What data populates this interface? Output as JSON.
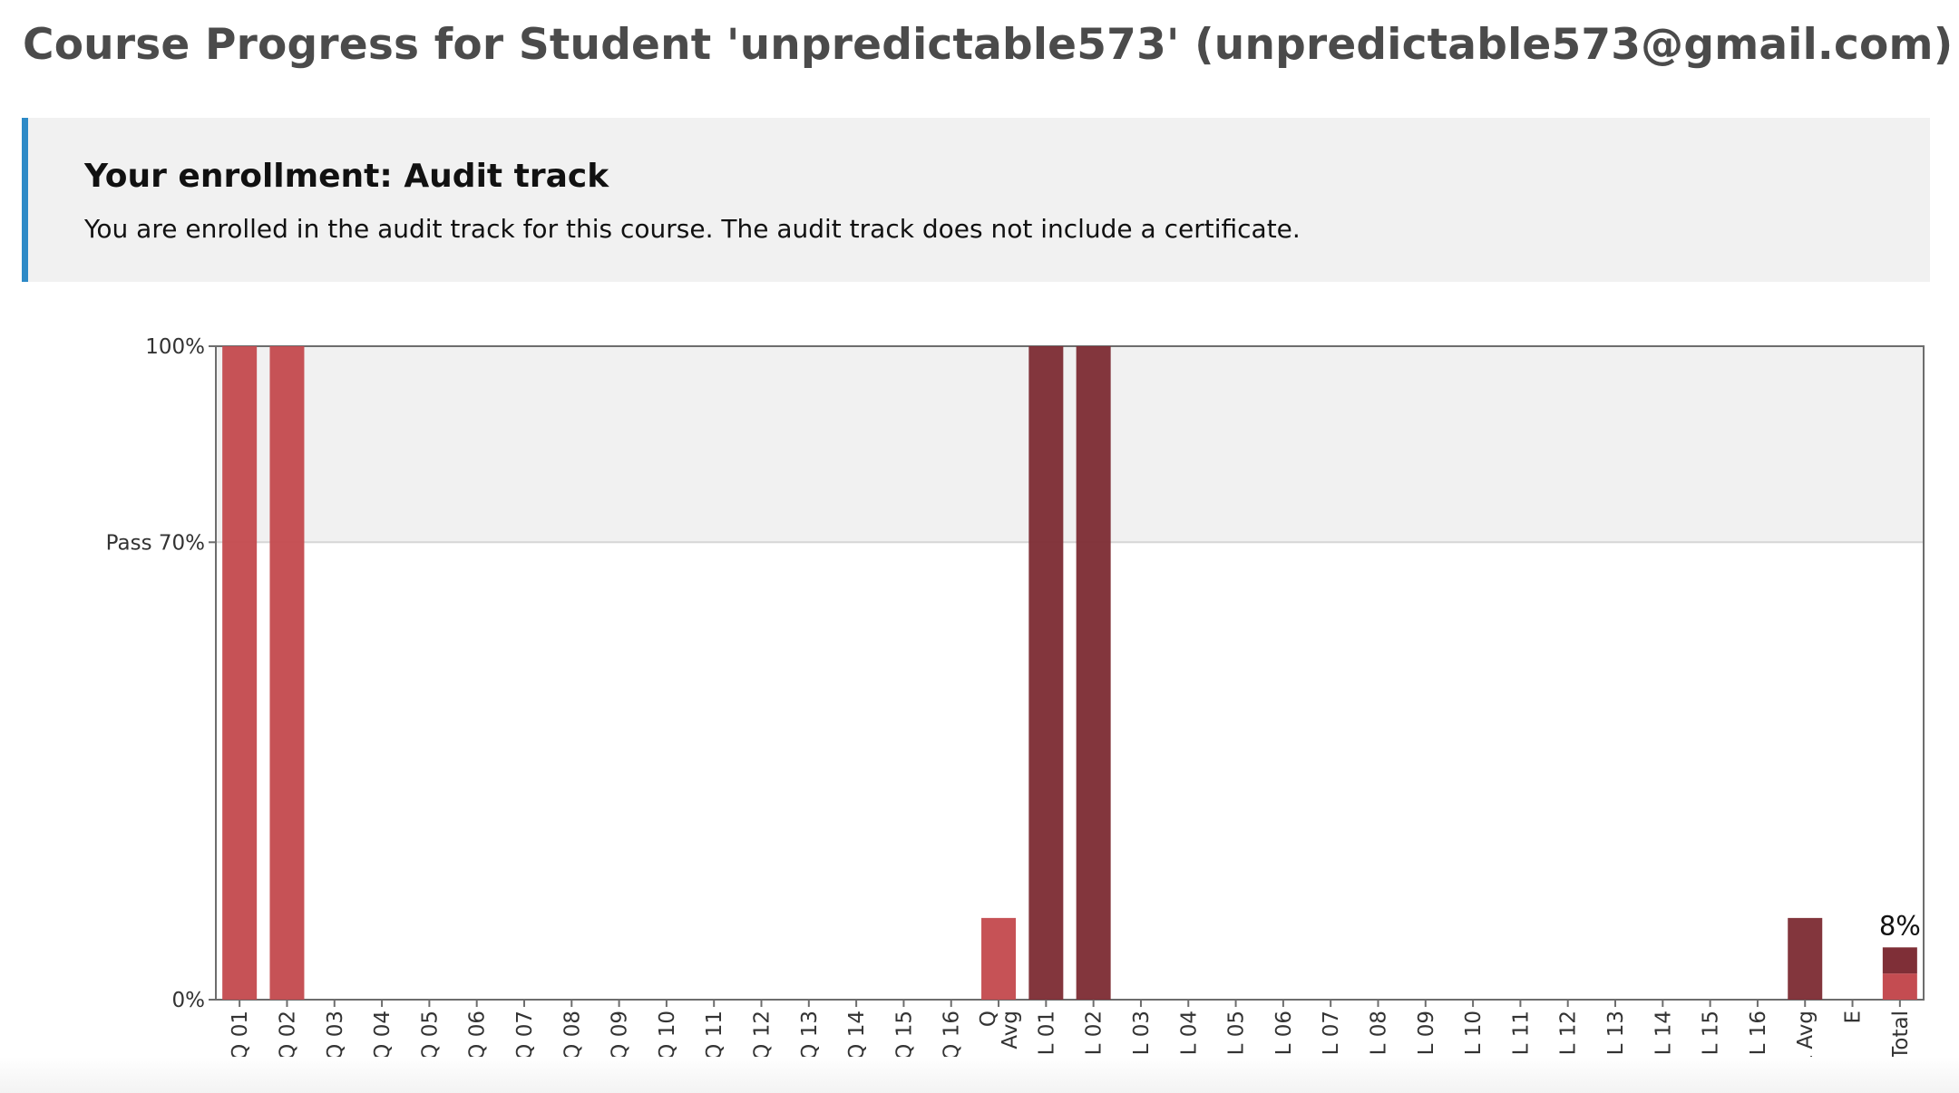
{
  "page": {
    "title": "Course Progress for Student 'unpredictable573' (unpredictable573@gmail.com)"
  },
  "enrollment": {
    "heading": "Your enrollment: Audit track",
    "message": "You are enrolled in the audit track for this course. The audit track does not include a certificate."
  },
  "colors": {
    "accent_border": "#2d8ac7",
    "quiz_bar": "#c44c51",
    "lab_bar": "#7f2f37",
    "pass_region": "#f1f1f1",
    "plot_bg": "#ffffff"
  },
  "chart_data": {
    "type": "bar",
    "ylim": [
      0,
      100
    ],
    "ytick_labels": [
      "100%",
      "Pass 70%",
      "0%"
    ],
    "ytick_values": [
      100,
      70,
      0
    ],
    "pass_threshold": 70,
    "categories": [
      "Q 01",
      "Q 02",
      "Q 03",
      "Q 04",
      "Q 05",
      "Q 06",
      "Q 07",
      "Q 08",
      "Q 09",
      "Q 10",
      "Q 11",
      "Q 12",
      "Q 13",
      "Q 14",
      "Q 15",
      "Q 16",
      "Q Avg",
      "L 01",
      "L 02",
      "L 03",
      "L 04",
      "L 05",
      "L 06",
      "L 07",
      "L 08",
      "L 09",
      "L 10",
      "L 11",
      "L 12",
      "L 13",
      "L 14",
      "L 15",
      "L 16",
      "L Avg",
      "E",
      "Total"
    ],
    "values": [
      100,
      100,
      0,
      0,
      0,
      0,
      0,
      0,
      0,
      0,
      0,
      0,
      0,
      0,
      0,
      0,
      12.5,
      100,
      100,
      0,
      0,
      0,
      0,
      0,
      0,
      0,
      0,
      0,
      0,
      0,
      0,
      0,
      0,
      12.5,
      0,
      8
    ],
    "groups": [
      "quiz",
      "quiz",
      "quiz",
      "quiz",
      "quiz",
      "quiz",
      "quiz",
      "quiz",
      "quiz",
      "quiz",
      "quiz",
      "quiz",
      "quiz",
      "quiz",
      "quiz",
      "quiz",
      "quiz",
      "lab",
      "lab",
      "lab",
      "lab",
      "lab",
      "lab",
      "lab",
      "lab",
      "lab",
      "lab",
      "lab",
      "lab",
      "lab",
      "lab",
      "lab",
      "lab",
      "lab",
      "exam",
      "total"
    ],
    "total_segments": [
      {
        "group": "quiz",
        "value": 4
      },
      {
        "group": "lab",
        "value": 4
      }
    ],
    "total_label": "8%"
  }
}
